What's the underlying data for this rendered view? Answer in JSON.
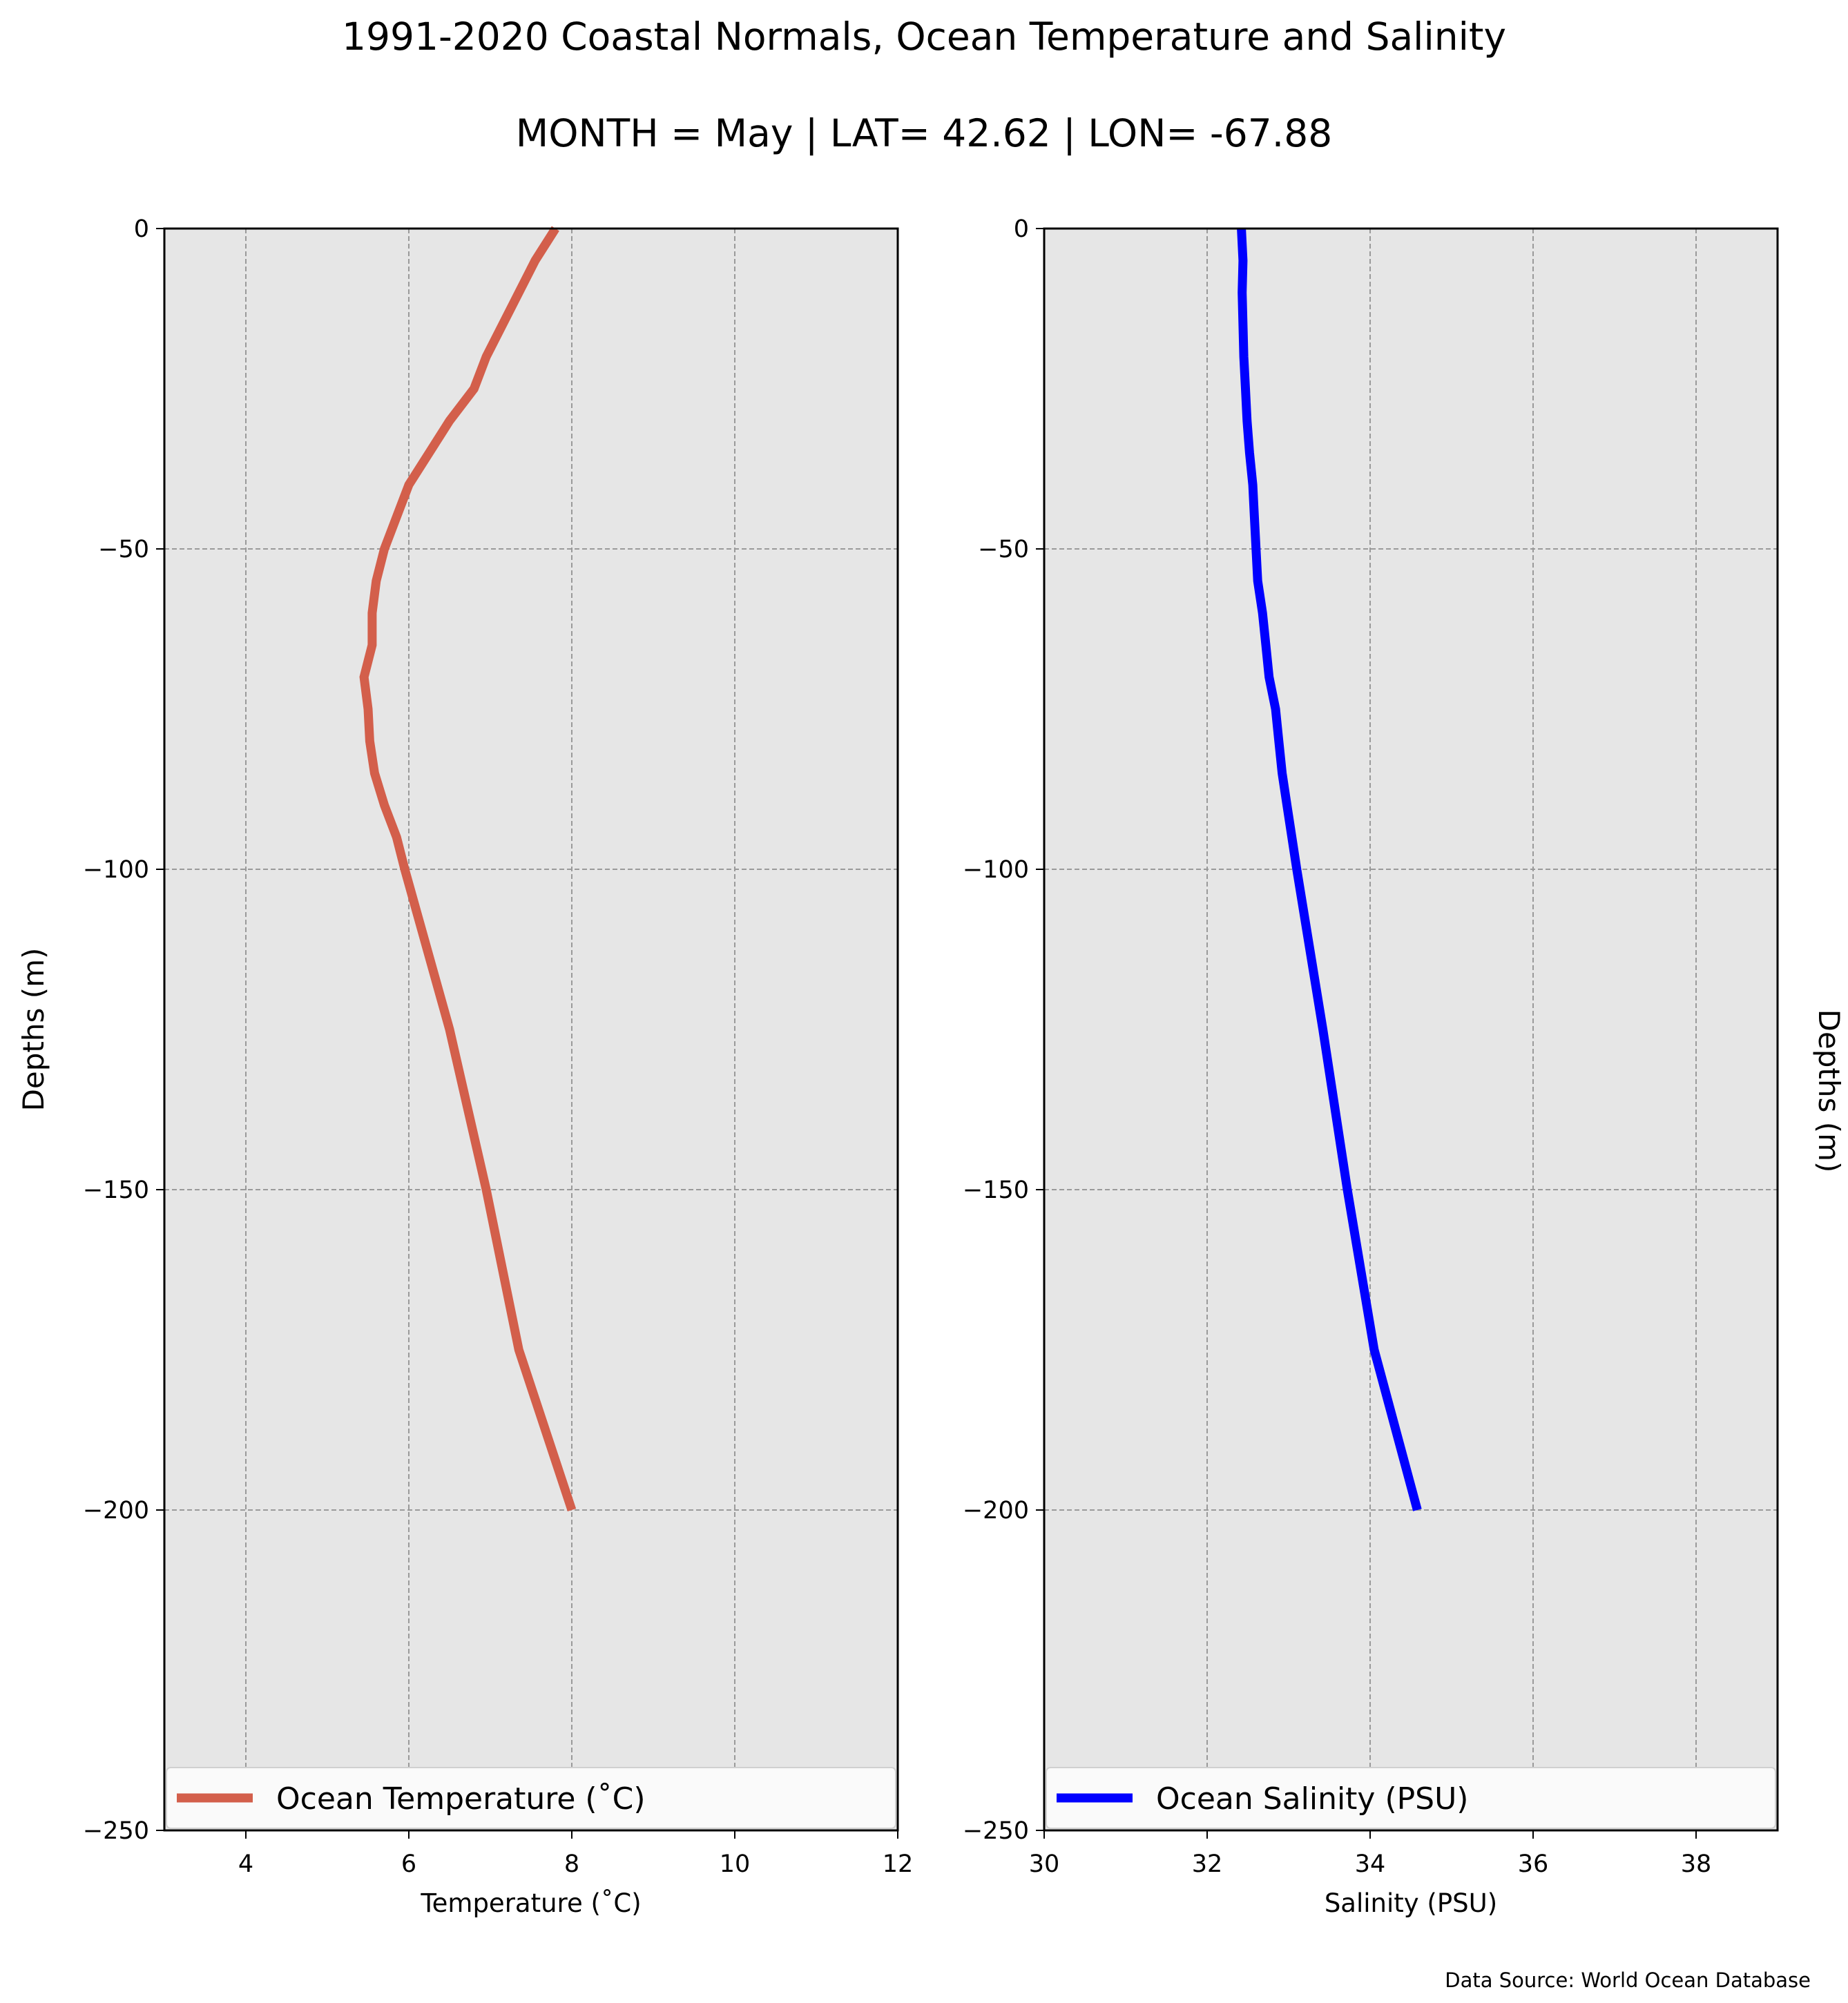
{
  "figure": {
    "title": "1991-2020 Coastal Normals, Ocean Temperature and Salinity",
    "subtitle": "MONTH = May | LAT= 42.62 | LON= -67.88",
    "source_note": "Data Source: World Ocean Database"
  },
  "chart_data": [
    {
      "type": "line",
      "xlabel": "Temperature ($^\\circ$C)",
      "xlabel_display": "Temperature (˚C)",
      "ylabel": "Depths (m)",
      "xlim": [
        3,
        12
      ],
      "ylim": [
        -250,
        0
      ],
      "xticks": [
        4,
        6,
        8,
        10,
        12
      ],
      "yticks": [
        0,
        -50,
        -100,
        -150,
        -200,
        -250
      ],
      "grid": true,
      "legend_position": "bottom",
      "series": [
        {
          "name": "Ocean Temperature (˚C)",
          "color": "#d35f4b",
          "points": [
            [
              7.8,
              0
            ],
            [
              7.55,
              -5
            ],
            [
              7.35,
              -10
            ],
            [
              7.15,
              -15
            ],
            [
              6.95,
              -20
            ],
            [
              6.8,
              -25
            ],
            [
              6.5,
              -30
            ],
            [
              6.25,
              -35
            ],
            [
              6.0,
              -40
            ],
            [
              5.85,
              -45
            ],
            [
              5.7,
              -50
            ],
            [
              5.6,
              -55
            ],
            [
              5.55,
              -60
            ],
            [
              5.55,
              -65
            ],
            [
              5.45,
              -70
            ],
            [
              5.5,
              -75
            ],
            [
              5.52,
              -80
            ],
            [
              5.58,
              -85
            ],
            [
              5.7,
              -90
            ],
            [
              5.85,
              -95
            ],
            [
              5.95,
              -100
            ],
            [
              6.5,
              -125
            ],
            [
              6.95,
              -150
            ],
            [
              7.35,
              -175
            ],
            [
              8.0,
              -200
            ]
          ]
        }
      ]
    },
    {
      "type": "line",
      "xlabel": "Salinity (PSU)",
      "ylabel": "Depths (m)",
      "xlim": [
        30,
        39
      ],
      "ylim": [
        -250,
        0
      ],
      "xticks": [
        30,
        32,
        34,
        36,
        38
      ],
      "yticks": [
        0,
        -50,
        -100,
        -150,
        -200,
        -250
      ],
      "grid": true,
      "legend_position": "bottom",
      "series": [
        {
          "name": "Ocean Salinity (PSU)",
          "color": "#0000ff",
          "points": [
            [
              32.42,
              0
            ],
            [
              32.44,
              -5
            ],
            [
              32.43,
              -10
            ],
            [
              32.44,
              -15
            ],
            [
              32.45,
              -20
            ],
            [
              32.47,
              -25
            ],
            [
              32.49,
              -30
            ],
            [
              32.52,
              -35
            ],
            [
              32.56,
              -40
            ],
            [
              32.58,
              -45
            ],
            [
              32.6,
              -50
            ],
            [
              32.62,
              -55
            ],
            [
              32.68,
              -60
            ],
            [
              32.72,
              -65
            ],
            [
              32.76,
              -70
            ],
            [
              32.84,
              -75
            ],
            [
              32.88,
              -80
            ],
            [
              32.92,
              -85
            ],
            [
              32.98,
              -90
            ],
            [
              33.04,
              -95
            ],
            [
              33.1,
              -100
            ],
            [
              33.42,
              -125
            ],
            [
              33.72,
              -150
            ],
            [
              34.05,
              -175
            ],
            [
              34.58,
              -200
            ]
          ]
        }
      ]
    }
  ]
}
